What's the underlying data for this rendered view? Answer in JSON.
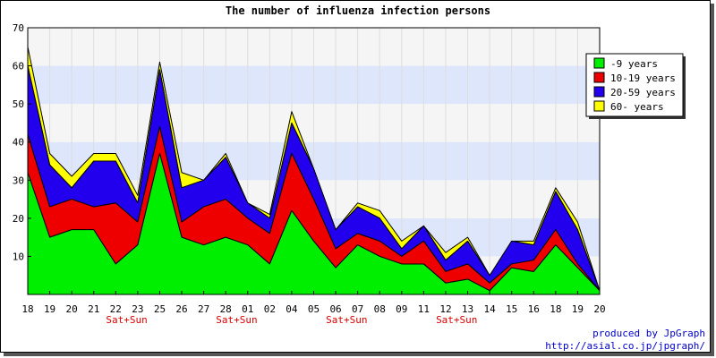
{
  "chart_data": {
    "type": "area",
    "stacked": true,
    "title": "The number of influenza infection persons",
    "ylim": [
      0,
      70
    ],
    "yticks": [
      10,
      20,
      30,
      40,
      50,
      60,
      70
    ],
    "categories": [
      "18",
      "19",
      "20",
      "21",
      "22",
      "23",
      "25",
      "26",
      "27",
      "28",
      "01",
      "02",
      "04",
      "05",
      "06",
      "07",
      "08",
      "09",
      "11",
      "12",
      "13",
      "14",
      "15",
      "16",
      "18",
      "19",
      "20"
    ],
    "weekend_labels": [
      {
        "category_index": 4,
        "text": "Sat+Sun"
      },
      {
        "category_index": 9,
        "text": "Sat+Sun"
      },
      {
        "category_index": 14,
        "text": "Sat+Sun"
      },
      {
        "category_index": 19,
        "text": "Sat+Sun"
      }
    ],
    "series": [
      {
        "name": "-9 years",
        "color": "#00ee00",
        "values": [
          32,
          15,
          17,
          17,
          8,
          13,
          37,
          15,
          13,
          15,
          13,
          8,
          22,
          14,
          7,
          13,
          10,
          8,
          8,
          3,
          4,
          1,
          7,
          6,
          13,
          7,
          1
        ]
      },
      {
        "name": "10-19 years",
        "color": "#ee0000",
        "values": [
          10,
          8,
          8,
          6,
          16,
          6,
          7,
          4,
          10,
          10,
          7,
          8,
          15,
          11,
          5,
          3,
          4,
          2,
          6,
          3,
          4,
          2,
          1,
          3,
          4,
          1,
          0
        ]
      },
      {
        "name": "20-59 years",
        "color": "#2200ee",
        "values": [
          18,
          11,
          3,
          12,
          11,
          5,
          15,
          9,
          7,
          11,
          4,
          4,
          8,
          8,
          5,
          7,
          6,
          2,
          4,
          3,
          6,
          2,
          6,
          4,
          10,
          9,
          0
        ]
      },
      {
        "name": "60- years",
        "color": "#ffff00",
        "values": [
          5,
          3,
          3,
          2,
          2,
          2,
          2,
          4,
          0,
          1,
          0,
          1,
          3,
          0,
          0,
          1,
          2,
          2,
          0,
          2,
          1,
          0,
          0,
          1,
          1,
          2,
          0
        ]
      }
    ],
    "legend_position": "top-right",
    "grid": true,
    "band_colors": [
      "#f5f5f5",
      "#dde6fb"
    ]
  },
  "credits": {
    "line1": "produced by JpGraph",
    "line2": "http://asial.co.jp/jpgraph/"
  }
}
